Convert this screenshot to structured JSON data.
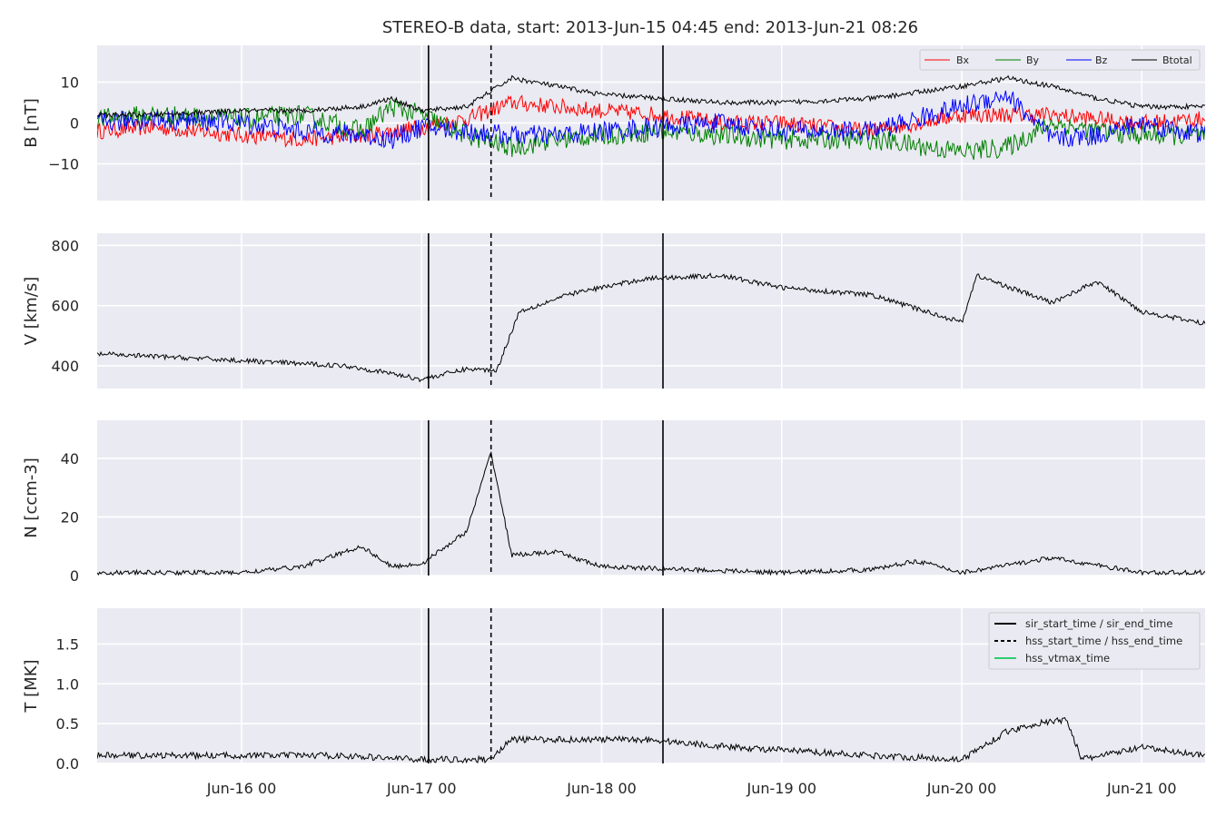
{
  "title": "STEREO-B data, start: 2013-Jun-15 04:45  end: 2013-Jun-21 08:26",
  "time_range": {
    "start": "2013-06-15 04:45",
    "end": "2013-06-21 08:26"
  },
  "x_ticks": [
    {
      "label": "Jun-16 00",
      "t": "2013-06-16 00:00"
    },
    {
      "label": "Jun-17 00",
      "t": "2013-06-17 00:00"
    },
    {
      "label": "Jun-18 00",
      "t": "2013-06-18 00:00"
    },
    {
      "label": "Jun-19 00",
      "t": "2013-06-19 00:00"
    },
    {
      "label": "Jun-20 00",
      "t": "2013-06-20 00:00"
    },
    {
      "label": "Jun-21 00",
      "t": "2013-06-21 00:00"
    }
  ],
  "event_lines": [
    {
      "t": "2013-06-17 00:55",
      "style": "solid"
    },
    {
      "t": "2013-06-17 09:15",
      "style": "dashed"
    },
    {
      "t": "2013-06-18 08:10",
      "style": "solid"
    }
  ],
  "colors": {
    "panel_bg": "#eaeaf2",
    "grid": "#ffffff",
    "bx": "#ff0000",
    "by": "#008000",
    "bz": "#0000ff",
    "btotal": "#000000",
    "line": "#000000",
    "vtmax": "#2ecc71"
  },
  "legend_top": [
    {
      "label": "Bx",
      "color": "#ff0000"
    },
    {
      "label": "By",
      "color": "#008000"
    },
    {
      "label": "Bz",
      "color": "#0000ff"
    },
    {
      "label": "Btotal",
      "color": "#000000"
    }
  ],
  "legend_bottom": [
    {
      "label": "sir_start_time / sir_end_time",
      "style": "solid",
      "color": "#000000"
    },
    {
      "label": "hss_start_time / hss_end_time",
      "style": "dashed",
      "color": "#000000"
    },
    {
      "label": "hss_vtmax_time",
      "style": "solid",
      "color": "#2ecc71"
    }
  ],
  "chart_data": [
    {
      "type": "line",
      "ylabel": "B [nT]",
      "ylim": [
        -19,
        19
      ],
      "yticks": [
        {
          "v": -10,
          "label": "−10"
        },
        {
          "v": 0,
          "label": "0"
        },
        {
          "v": 10,
          "label": "10"
        }
      ],
      "grid": true,
      "legend": "top-right",
      "x": [
        "2013-06-15 04:45",
        "2013-06-15 12:00",
        "2013-06-16 00:00",
        "2013-06-16 08:00",
        "2013-06-16 16:00",
        "2013-06-16 20:00",
        "2013-06-17 00:00",
        "2013-06-17 06:00",
        "2013-06-17 12:00",
        "2013-06-17 18:00",
        "2013-06-18 00:00",
        "2013-06-18 08:00",
        "2013-06-18 16:00",
        "2013-06-19 00:00",
        "2013-06-19 12:00",
        "2013-06-20 00:00",
        "2013-06-20 06:00",
        "2013-06-20 12:00",
        "2013-06-20 18:00",
        "2013-06-21 00:00",
        "2013-06-21 08:26"
      ],
      "series": [
        {
          "name": "Bx",
          "noise": 2.0,
          "values": [
            -2,
            -1,
            -3,
            -4,
            -3,
            -2,
            -1,
            1,
            5,
            4,
            3,
            2,
            0,
            0,
            -2,
            2,
            2,
            2,
            1,
            0,
            1
          ]
        },
        {
          "name": "By",
          "noise": 2.5,
          "values": [
            1,
            2,
            1,
            2,
            -2,
            4,
            2,
            -3,
            -6,
            -4,
            -3,
            -2,
            -3,
            -4,
            -4,
            -7,
            -6,
            0,
            -2,
            -3,
            -3
          ]
        },
        {
          "name": "Bz",
          "noise": 2.5,
          "values": [
            0,
            1,
            0,
            -2,
            -3,
            -4,
            -1,
            -2,
            -3,
            -3,
            -2,
            -1,
            0,
            -2,
            -2,
            4,
            7,
            -4,
            -3,
            0,
            -3
          ]
        },
        {
          "name": "Btotal",
          "noise": 0.6,
          "values": [
            2,
            2,
            3,
            3,
            4,
            6,
            3,
            4,
            11,
            9,
            7,
            6,
            5,
            5,
            6,
            9,
            11,
            9,
            6,
            4,
            4
          ]
        }
      ]
    },
    {
      "type": "line",
      "ylabel": "V [km/s]",
      "ylim": [
        325,
        840
      ],
      "yticks": [
        {
          "v": 400,
          "label": "400"
        },
        {
          "v": 600,
          "label": "600"
        },
        {
          "v": 800,
          "label": "800"
        }
      ],
      "grid": true,
      "x": [
        "2013-06-15 04:45",
        "2013-06-15 18:00",
        "2013-06-16 06:00",
        "2013-06-16 14:00",
        "2013-06-16 20:00",
        "2013-06-17 00:00",
        "2013-06-17 06:00",
        "2013-06-17 10:00",
        "2013-06-17 13:00",
        "2013-06-17 20:00",
        "2013-06-18 06:00",
        "2013-06-18 16:00",
        "2013-06-19 00:00",
        "2013-06-19 12:00",
        "2013-06-20 00:00",
        "2013-06-20 02:00",
        "2013-06-20 12:00",
        "2013-06-20 18:00",
        "2013-06-21 00:00",
        "2013-06-21 08:26"
      ],
      "series": [
        {
          "name": "",
          "noise": 8,
          "values": [
            440,
            425,
            410,
            400,
            375,
            355,
            390,
            385,
            580,
            640,
            690,
            700,
            660,
            635,
            545,
            700,
            610,
            680,
            580,
            540
          ]
        }
      ]
    },
    {
      "type": "line",
      "ylabel": "N [ccm-3]",
      "ylim": [
        0,
        53
      ],
      "yticks": [
        {
          "v": 0,
          "label": "0"
        },
        {
          "v": 20,
          "label": "20"
        },
        {
          "v": 40,
          "label": "40"
        }
      ],
      "grid": true,
      "x": [
        "2013-06-15 04:45",
        "2013-06-16 00:00",
        "2013-06-16 08:00",
        "2013-06-16 16:00",
        "2013-06-16 20:00",
        "2013-06-17 00:00",
        "2013-06-17 06:00",
        "2013-06-17 09:15",
        "2013-06-17 12:00",
        "2013-06-17 18:00",
        "2013-06-18 00:00",
        "2013-06-18 12:00",
        "2013-06-19 00:00",
        "2013-06-19 12:00",
        "2013-06-19 18:00",
        "2013-06-20 00:00",
        "2013-06-20 12:00",
        "2013-06-21 00:00",
        "2013-06-21 08:26"
      ],
      "series": [
        {
          "name": "",
          "noise": 0.8,
          "values": [
            1,
            1,
            3,
            10,
            3,
            4,
            15,
            42,
            7,
            8,
            3,
            2,
            1,
            2,
            5,
            1,
            6,
            1,
            1
          ]
        }
      ]
    },
    {
      "type": "line",
      "ylabel": "T [MK]",
      "ylim": [
        0,
        1.95
      ],
      "yticks": [
        {
          "v": 0,
          "label": "0.0"
        },
        {
          "v": 0.5,
          "label": "0.5"
        },
        {
          "v": 1.0,
          "label": "1.0"
        },
        {
          "v": 1.5,
          "label": "1.5"
        }
      ],
      "grid": true,
      "legend": "top-right",
      "x": [
        "2013-06-15 04:45",
        "2013-06-16 00:00",
        "2013-06-16 12:00",
        "2013-06-17 00:00",
        "2013-06-17 09:00",
        "2013-06-17 12:00",
        "2013-06-17 18:00",
        "2013-06-18 06:00",
        "2013-06-18 18:00",
        "2013-06-19 12:00",
        "2013-06-20 00:00",
        "2013-06-20 06:00",
        "2013-06-20 10:00",
        "2013-06-20 14:00",
        "2013-06-20 16:00",
        "2013-06-21 00:00",
        "2013-06-21 08:26"
      ],
      "series": [
        {
          "name": "",
          "noise": 0.04,
          "values": [
            0.1,
            0.1,
            0.1,
            0.05,
            0.05,
            0.3,
            0.3,
            0.3,
            0.2,
            0.1,
            0.05,
            0.4,
            0.5,
            0.55,
            0.05,
            0.2,
            0.1
          ]
        }
      ]
    }
  ]
}
